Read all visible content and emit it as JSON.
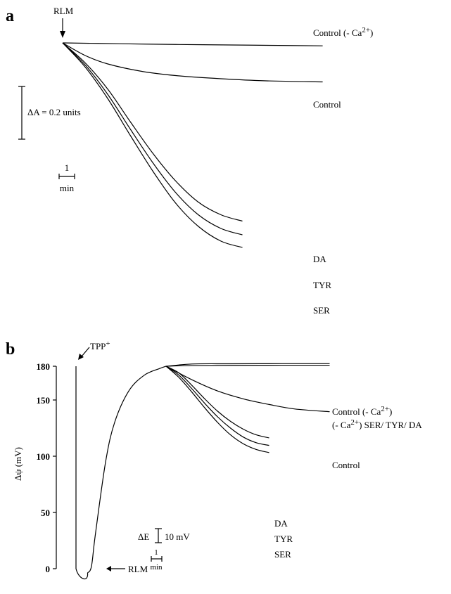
{
  "chart_data": [
    {
      "panel": "a",
      "type": "line",
      "title": "",
      "xlabel": "",
      "ylabel": "",
      "annotations": {
        "addition_marker": "RLM",
        "scale_bar_y": "ΔA = 0.2 units",
        "scale_bar_x_value": "1",
        "scale_bar_x_unit": "min"
      },
      "time_unit": "min",
      "absorbance_unit": "units",
      "series": [
        {
          "name": "Control (- Ca2+)",
          "label_main": "Control (- Ca",
          "label_sup": "2+",
          "label_end": ")",
          "points": [
            [
              0,
              0
            ],
            [
              5,
              -0.008
            ],
            [
              10,
              -0.015
            ],
            [
              15,
              -0.02
            ],
            [
              20,
              -0.025
            ],
            [
              23,
              -0.028
            ]
          ]
        },
        {
          "name": "Control",
          "label_main": "Control",
          "label_sup": "",
          "label_end": "",
          "points": [
            [
              0,
              0
            ],
            [
              2,
              -0.12
            ],
            [
              4,
              -0.2
            ],
            [
              7,
              -0.27
            ],
            [
              10,
              -0.31
            ],
            [
              14,
              -0.34
            ],
            [
              18,
              -0.36
            ],
            [
              23,
              -0.37
            ]
          ]
        },
        {
          "name": "DA",
          "label_main": "DA",
          "label_sup": "",
          "label_end": "",
          "points": [
            [
              0,
              0
            ],
            [
              2,
              -0.19
            ],
            [
              4,
              -0.44
            ],
            [
              6,
              -0.75
            ],
            [
              8,
              -1.05
            ],
            [
              10,
              -1.31
            ],
            [
              12,
              -1.51
            ],
            [
              14,
              -1.63
            ],
            [
              15.9,
              -1.69
            ]
          ]
        },
        {
          "name": "TYR",
          "label_main": "TYR",
          "label_sup": "",
          "label_end": "",
          "points": [
            [
              0,
              0
            ],
            [
              2,
              -0.21
            ],
            [
              4,
              -0.49
            ],
            [
              6,
              -0.82
            ],
            [
              8,
              -1.14
            ],
            [
              10,
              -1.42
            ],
            [
              12,
              -1.63
            ],
            [
              14,
              -1.76
            ],
            [
              15.9,
              -1.82
            ]
          ]
        },
        {
          "name": "SER",
          "label_main": "SER",
          "label_sup": "",
          "label_end": "",
          "points": [
            [
              0,
              0
            ],
            [
              2,
              -0.23
            ],
            [
              4,
              -0.53
            ],
            [
              6,
              -0.88
            ],
            [
              8,
              -1.22
            ],
            [
              10,
              -1.52
            ],
            [
              12,
              -1.74
            ],
            [
              14,
              -1.88
            ],
            [
              15.9,
              -1.94
            ]
          ]
        }
      ]
    },
    {
      "panel": "b",
      "type": "line",
      "title": "",
      "xlabel": "",
      "ylabel": "Δψ (mV)",
      "y_ticks": [
        0,
        50,
        100,
        150,
        180
      ],
      "annotations": {
        "probe_marker_main": "TPP",
        "probe_marker_sup": "+",
        "addition_marker": "RLM",
        "scale_bar_y": "ΔE",
        "scale_bar_y_value": "10 mV",
        "scale_bar_x_value": "1",
        "scale_bar_x_unit": "min"
      },
      "time_unit": "min",
      "probe_trace": [
        [
          0,
          180
        ],
        [
          0,
          0
        ]
      ],
      "common_trace": [
        [
          0.9,
          0
        ],
        [
          1.2,
          2
        ],
        [
          1.5,
          30
        ],
        [
          2.3,
          95
        ],
        [
          3,
          130
        ],
        [
          4.1,
          158
        ],
        [
          5.3,
          172
        ],
        [
          6.5,
          178
        ],
        [
          7,
          180
        ]
      ],
      "series": [
        {
          "name": "Control (- Ca2+)",
          "label_main": "Control (- Ca",
          "label_sup": "2+",
          "label_end": ")",
          "points": [
            [
              7,
              180
            ],
            [
              9,
              182
            ],
            [
              12,
              182.2
            ],
            [
              16,
              182.3
            ],
            [
              19.7,
              182.3
            ]
          ]
        },
        {
          "name": "(- Ca2+) SER/ TYR/ DA",
          "label_main": "(- Ca",
          "label_sup": "2+",
          "label_end": ") SER/ TYR/ DA",
          "points": [
            [
              7,
              180
            ],
            [
              9,
              180.6
            ],
            [
              12,
              180.8
            ],
            [
              16,
              180.9
            ],
            [
              19.7,
              180.9
            ]
          ]
        },
        {
          "name": "Control",
          "label_main": "Control",
          "label_sup": "",
          "label_end": "",
          "points": [
            [
              7,
              180
            ],
            [
              9,
              168
            ],
            [
              11,
              158
            ],
            [
              13,
              151
            ],
            [
              15,
              146
            ],
            [
              17,
              142
            ],
            [
              19.7,
              139.6
            ]
          ]
        },
        {
          "name": "DA",
          "label_main": "DA",
          "label_sup": "",
          "label_end": "",
          "points": [
            [
              7,
              180
            ],
            [
              8,
              174
            ],
            [
              9,
              163
            ],
            [
              10,
              151
            ],
            [
              11,
              140
            ],
            [
              12,
              131
            ],
            [
              13,
              124
            ],
            [
              14,
              119
            ],
            [
              15,
              116.3
            ]
          ]
        },
        {
          "name": "TYR",
          "label_main": "TYR",
          "label_sup": "",
          "label_end": "",
          "points": [
            [
              7,
              180
            ],
            [
              8,
              172
            ],
            [
              9,
              160
            ],
            [
              10,
              147
            ],
            [
              11,
              135
            ],
            [
              12,
              125
            ],
            [
              13,
              117
            ],
            [
              14,
              112
            ],
            [
              15,
              109.6
            ]
          ]
        },
        {
          "name": "SER",
          "label_main": "SER",
          "label_sup": "",
          "label_end": "",
          "points": [
            [
              7,
              180
            ],
            [
              8,
              170
            ],
            [
              9,
              157
            ],
            [
              10,
              143
            ],
            [
              11,
              130
            ],
            [
              12,
              119
            ],
            [
              13,
              111
            ],
            [
              14,
              106
            ],
            [
              15,
              103.2
            ]
          ]
        }
      ]
    }
  ]
}
